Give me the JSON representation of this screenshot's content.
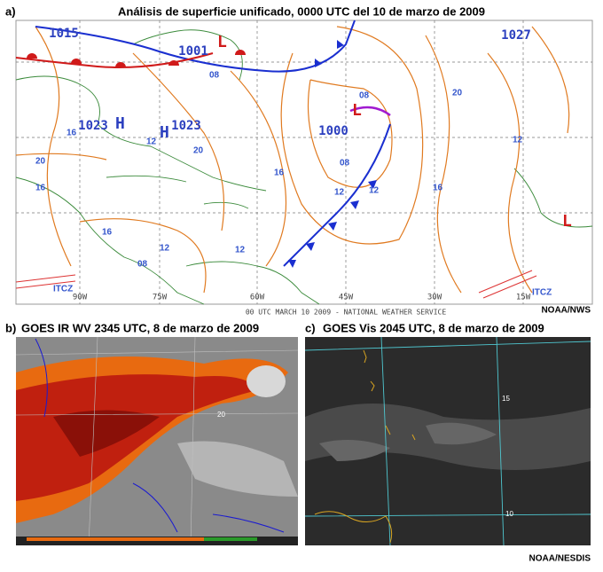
{
  "panel_a": {
    "letter": "a)",
    "title": "Análisis de superficie unificado, 0000 UTC del 10 de marzo de 2009",
    "pressure_labels": [
      "1015",
      "1001",
      "1027",
      "1023",
      "1023",
      "1000"
    ],
    "centers": [
      "H",
      "H",
      "L",
      "L",
      "L"
    ],
    "isobar_labels": [
      "08",
      "16",
      "20",
      "16",
      "12",
      "16",
      "12",
      "08",
      "12",
      "16",
      "20",
      "12",
      "08",
      "08",
      "12",
      "16",
      "20",
      "12"
    ],
    "longitudes": [
      "90W",
      "75W",
      "60W",
      "45W",
      "30W",
      "15W"
    ],
    "itcz": [
      "ITCZ",
      "ITCZ"
    ],
    "footer": "00 UTC MARCH 10 2009 - NATIONAL WEATHER SERVICE",
    "credit": "NOAA/NWS"
  },
  "panel_b": {
    "letter": "b)",
    "title": "GOES IR WV 2345 UTC, 8 de marzo de 2009",
    "lat_label": "20"
  },
  "panel_c": {
    "letter": "c)",
    "title": "GOES Vis 2045 UTC, 8 de marzo de 2009",
    "lat_labels": [
      "15",
      "10"
    ],
    "credit": "NOAA/NESDIS"
  }
}
